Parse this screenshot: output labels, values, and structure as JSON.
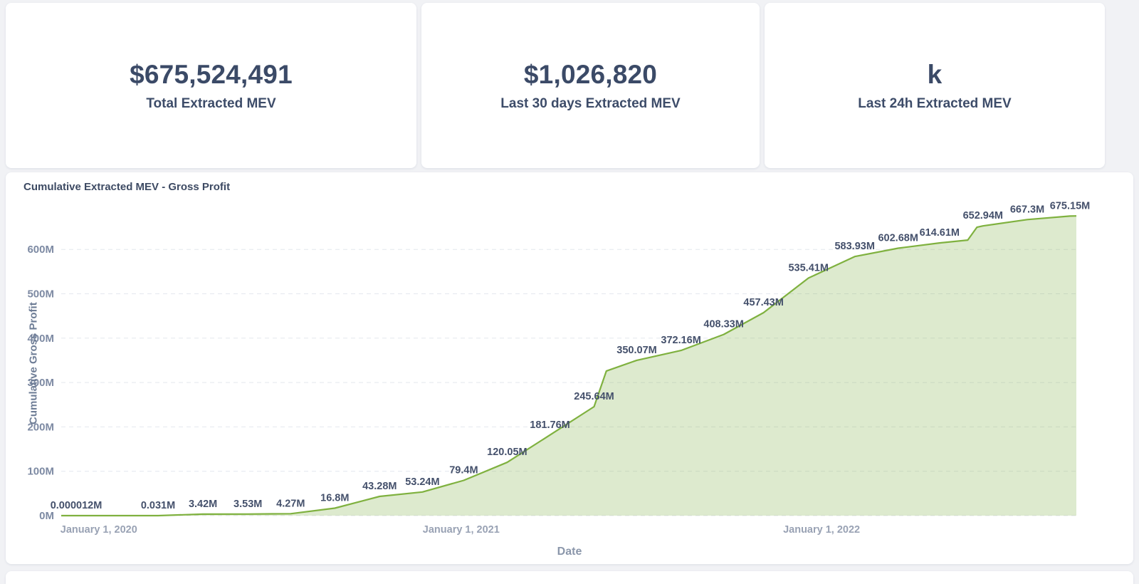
{
  "stats": [
    {
      "value": "$675,524,491",
      "label": "Total Extracted MEV"
    },
    {
      "value": "$1,026,820",
      "label": "Last 30 days Extracted MEV"
    },
    {
      "value": "k",
      "label": "Last 24h Extracted MEV"
    }
  ],
  "chart_data": {
    "type": "area",
    "title": "Cumulative Extracted MEV - Gross Profit",
    "xlabel": "Date",
    "ylabel": "Cumulative Gross Profit",
    "unit": "millions USD",
    "ylim": [
      0,
      700
    ],
    "grid": true,
    "legend": false,
    "line_color": "#7fb13f",
    "fill_color": "rgba(134,180,80,0.28)",
    "y_ticks": [
      {
        "label": "0M",
        "value": 0
      },
      {
        "label": "100M",
        "value": 100
      },
      {
        "label": "200M",
        "value": 200
      },
      {
        "label": "300M",
        "value": 300
      },
      {
        "label": "400M",
        "value": 400
      },
      {
        "label": "500M",
        "value": 500
      },
      {
        "label": "600M",
        "value": 600
      }
    ],
    "x_ticks": [
      {
        "label": "January 1, 2020",
        "x": 0.037
      },
      {
        "label": "January 1, 2021",
        "x": 0.394
      },
      {
        "label": "January 1, 2022",
        "x": 0.749
      }
    ],
    "points": [
      {
        "x": 0.0,
        "value": 1.2e-05,
        "label": null
      },
      {
        "x": 0.0147,
        "value": 1.2e-05,
        "label": "0.000012M"
      },
      {
        "x": 0.0954,
        "value": 0.031,
        "label": "0.031M"
      },
      {
        "x": 0.1396,
        "value": 3.42,
        "label": "3.42M"
      },
      {
        "x": 0.1839,
        "value": 3.53,
        "label": "3.53M"
      },
      {
        "x": 0.226,
        "value": 4.27,
        "label": "4.27M"
      },
      {
        "x": 0.2695,
        "value": 16.8,
        "label": "16.8M"
      },
      {
        "x": 0.3137,
        "value": 43.28,
        "label": "43.28M"
      },
      {
        "x": 0.3558,
        "value": 53.24,
        "label": "53.24M"
      },
      {
        "x": 0.3965,
        "value": 79.4,
        "label": "79.4M"
      },
      {
        "x": 0.4393,
        "value": 120.05,
        "label": "120.05M"
      },
      {
        "x": 0.4814,
        "value": 181.76,
        "label": "181.76M"
      },
      {
        "x": 0.5249,
        "value": 245.64,
        "label": "245.64M"
      },
      {
        "x": 0.537,
        "value": 326,
        "label": null
      },
      {
        "x": 0.567,
        "value": 350.07,
        "label": "350.07M"
      },
      {
        "x": 0.6105,
        "value": 372.16,
        "label": "372.16M"
      },
      {
        "x": 0.6526,
        "value": 408.33,
        "label": "408.33M"
      },
      {
        "x": 0.6919,
        "value": 457.43,
        "label": "457.43M"
      },
      {
        "x": 0.7361,
        "value": 535.41,
        "label": "535.41M"
      },
      {
        "x": 0.7817,
        "value": 583.93,
        "label": "583.93M"
      },
      {
        "x": 0.8245,
        "value": 602.68,
        "label": "602.68M"
      },
      {
        "x": 0.8652,
        "value": 614.61,
        "label": "614.61M"
      },
      {
        "x": 0.893,
        "value": 621,
        "label": null
      },
      {
        "x": 0.902,
        "value": 650,
        "label": null
      },
      {
        "x": 0.908,
        "value": 652.94,
        "label": "652.94M"
      },
      {
        "x": 0.9516,
        "value": 667.3,
        "label": "667.3M"
      },
      {
        "x": 0.9937,
        "value": 675.15,
        "label": "675.15M"
      },
      {
        "x": 1.0,
        "value": 675.5,
        "label": null
      }
    ]
  }
}
